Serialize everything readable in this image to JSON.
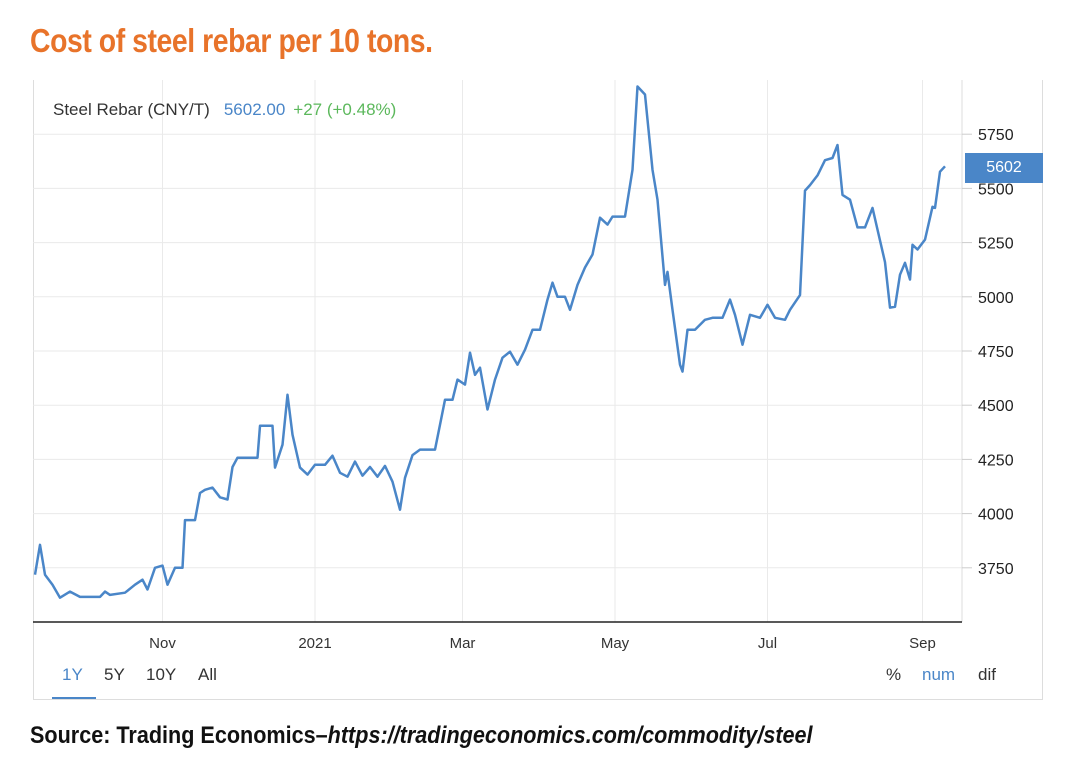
{
  "title": "Cost of steel rebar per 10 tons.",
  "source": {
    "prefix": "Source: Trading Economics–",
    "url": "https://tradingeconomics.com/commodity/steel"
  },
  "header": {
    "name": "Steel Rebar (CNY/T)",
    "price": "5602.00",
    "change": "+27 (+0.48%)"
  },
  "last_value_badge": "5602",
  "ranges": [
    "1Y",
    "5Y",
    "10Y",
    "All"
  ],
  "active_range": "1Y",
  "modes": [
    "%",
    "num",
    "dif"
  ],
  "active_mode": "num",
  "colors": {
    "line": "#4a86c8",
    "title": "#e8732a",
    "change": "#5cb85c"
  },
  "chart_data": {
    "type": "line",
    "title": "",
    "xlabel": "",
    "ylabel": "",
    "ylim": [
      3500,
      6000
    ],
    "yticks": [
      3750,
      4000,
      4250,
      4500,
      4750,
      5000,
      5250,
      5500,
      5750
    ],
    "xticks": [
      {
        "date": "2020-11-01",
        "label": "Nov"
      },
      {
        "date": "2021-01-01",
        "label": "2021"
      },
      {
        "date": "2021-03-01",
        "label": "Mar"
      },
      {
        "date": "2021-05-01",
        "label": "May"
      },
      {
        "date": "2021-07-01",
        "label": "Jul"
      },
      {
        "date": "2021-09-01",
        "label": "Sep"
      }
    ],
    "grid": true,
    "y_axis_position": "right",
    "x": [
      "2020-09-11",
      "2020-09-13",
      "2020-09-15",
      "2020-09-18",
      "2020-09-21",
      "2020-09-25",
      "2020-09-29",
      "2020-10-07",
      "2020-10-09",
      "2020-10-11",
      "2020-10-17",
      "2020-10-21",
      "2020-10-24",
      "2020-10-26",
      "2020-10-29",
      "2020-11-01",
      "2020-11-03",
      "2020-11-06",
      "2020-11-09",
      "2020-11-10",
      "2020-11-14",
      "2020-11-16",
      "2020-11-18",
      "2020-11-21",
      "2020-11-24",
      "2020-11-27",
      "2020-11-29",
      "2020-12-01",
      "2020-12-09",
      "2020-12-10",
      "2020-12-15",
      "2020-12-16",
      "2020-12-19",
      "2020-12-21",
      "2020-12-23",
      "2020-12-26",
      "2020-12-29",
      "2021-01-01",
      "2021-01-05",
      "2021-01-08",
      "2021-01-11",
      "2021-01-14",
      "2021-01-17",
      "2021-01-20",
      "2021-01-23",
      "2021-01-26",
      "2021-01-29",
      "2021-02-01",
      "2021-02-04",
      "2021-02-06",
      "2021-02-09",
      "2021-02-12",
      "2021-02-18",
      "2021-02-20",
      "2021-02-22",
      "2021-02-25",
      "2021-02-27",
      "2021-03-02",
      "2021-03-04",
      "2021-03-06",
      "2021-03-08",
      "2021-03-11",
      "2021-03-14",
      "2021-03-17",
      "2021-03-20",
      "2021-03-23",
      "2021-03-26",
      "2021-03-29",
      "2021-04-01",
      "2021-04-04",
      "2021-04-06",
      "2021-04-08",
      "2021-04-11",
      "2021-04-13",
      "2021-04-16",
      "2021-04-19",
      "2021-04-22",
      "2021-04-25",
      "2021-04-28",
      "2021-04-30",
      "2021-05-05",
      "2021-05-08",
      "2021-05-10",
      "2021-05-13",
      "2021-05-16",
      "2021-05-18",
      "2021-05-21",
      "2021-05-22",
      "2021-05-24",
      "2021-05-27",
      "2021-05-28",
      "2021-05-30",
      "2021-06-02",
      "2021-06-06",
      "2021-06-09",
      "2021-06-13",
      "2021-06-16",
      "2021-06-18",
      "2021-06-21",
      "2021-06-24",
      "2021-06-28",
      "2021-07-01",
      "2021-07-04",
      "2021-07-08",
      "2021-07-10",
      "2021-07-14",
      "2021-07-16",
      "2021-07-18",
      "2021-07-21",
      "2021-07-24",
      "2021-07-27",
      "2021-07-29",
      "2021-07-31",
      "2021-08-03",
      "2021-08-06",
      "2021-08-09",
      "2021-08-12",
      "2021-08-14",
      "2021-08-17",
      "2021-08-19",
      "2021-08-21",
      "2021-08-23",
      "2021-08-25",
      "2021-08-27",
      "2021-08-28",
      "2021-08-30",
      "2021-09-02",
      "2021-09-05",
      "2021-09-06",
      "2021-09-08",
      "2021-09-10"
    ],
    "series": [
      {
        "values": [
          3718,
          3856,
          3718,
          3672,
          3612,
          3640,
          3616,
          3616,
          3640,
          3625,
          3635,
          3672,
          3695,
          3650,
          3750,
          3760,
          3672,
          3750,
          3750,
          3970,
          3970,
          4095,
          4110,
          4120,
          4075,
          4065,
          4215,
          4258,
          4258,
          4405,
          4405,
          4212,
          4318,
          4548,
          4364,
          4212,
          4180,
          4225,
          4225,
          4267,
          4188,
          4170,
          4240,
          4175,
          4215,
          4170,
          4220,
          4147,
          4018,
          4165,
          4270,
          4295,
          4295,
          4410,
          4525,
          4525,
          4618,
          4595,
          4742,
          4640,
          4673,
          4480,
          4618,
          4719,
          4747,
          4687,
          4756,
          4848,
          4848,
          4987,
          5065,
          5000,
          5000,
          4940,
          5055,
          5135,
          5195,
          5365,
          5333,
          5370,
          5370,
          5586,
          5970,
          5933,
          5586,
          5448,
          5055,
          5115,
          4940,
          4687,
          4655,
          4848,
          4848,
          4894,
          4903,
          4903,
          4987,
          4917,
          4779,
          4917,
          4903,
          4963,
          4903,
          4894,
          4940,
          5008,
          5490,
          5515,
          5560,
          5630,
          5640,
          5700,
          5470,
          5448,
          5320,
          5320,
          5410,
          5310,
          5160,
          4950,
          4954,
          5102,
          5157,
          5080,
          5240,
          5218,
          5264,
          5415,
          5410,
          5577,
          5602
        ]
      }
    ]
  }
}
